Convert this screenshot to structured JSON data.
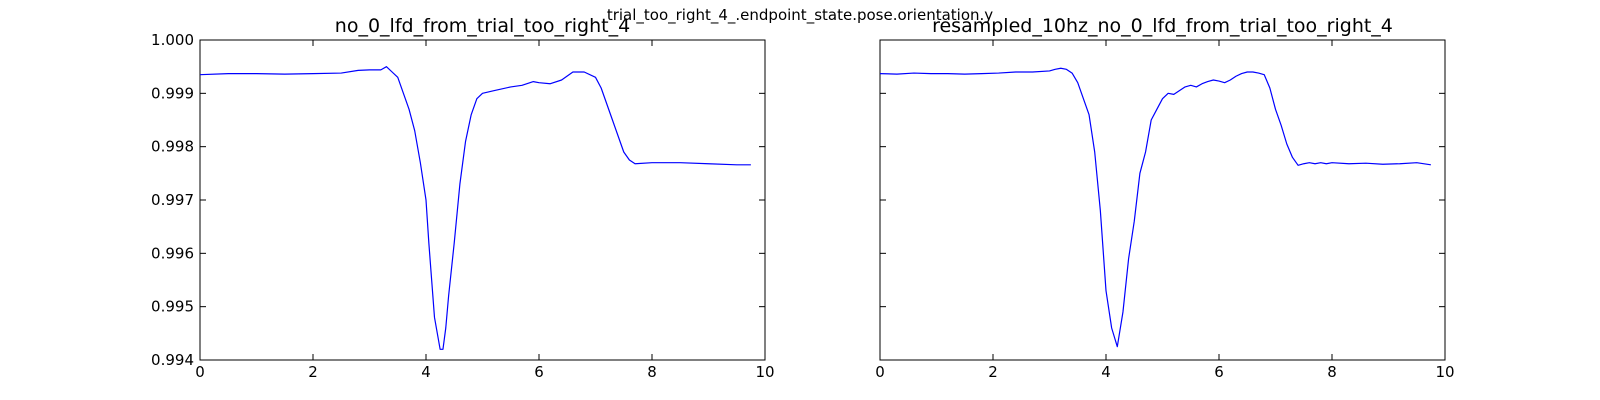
{
  "figure": {
    "suptitle": "trial_too_right_4_.endpoint_state.pose.orientation.y"
  },
  "chart_data": [
    {
      "type": "line",
      "title": "no_0_lfd_from_trial_too_right_4",
      "xlim": [
        0,
        10
      ],
      "ylim": [
        0.994,
        1.0
      ],
      "xticks": [
        0,
        2,
        4,
        6,
        8,
        10
      ],
      "yticks": [
        0.994,
        0.995,
        0.996,
        0.997,
        0.998,
        0.999,
        1.0
      ],
      "xtick_labels": [
        "0",
        "2",
        "4",
        "6",
        "8",
        "10"
      ],
      "ytick_labels": [
        "0.994",
        "0.995",
        "0.996",
        "0.997",
        "0.998",
        "0.999",
        "1.000"
      ],
      "show_y_labels": true,
      "color": "#0000ff",
      "series": [
        {
          "x": [
            0,
            0.5,
            1.0,
            1.5,
            2.0,
            2.5,
            2.8,
            3.0,
            3.2,
            3.3,
            3.4,
            3.5,
            3.6,
            3.7,
            3.8,
            3.9,
            4.0,
            4.05,
            4.1,
            4.15,
            4.2,
            4.25,
            4.3,
            4.35,
            4.4,
            4.5,
            4.6,
            4.7,
            4.8,
            4.9,
            5.0,
            5.2,
            5.5,
            5.7,
            5.9,
            6.0,
            6.2,
            6.4,
            6.6,
            6.8,
            7.0,
            7.1,
            7.2,
            7.3,
            7.4,
            7.5,
            7.6,
            7.7,
            8.0,
            8.5,
            9.0,
            9.5,
            9.75
          ],
          "y": [
            0.99935,
            0.99937,
            0.99937,
            0.99936,
            0.99937,
            0.99938,
            0.99943,
            0.99944,
            0.99944,
            0.9995,
            0.9994,
            0.9993,
            0.999,
            0.9987,
            0.9983,
            0.9977,
            0.997,
            0.9962,
            0.9955,
            0.9948,
            0.9945,
            0.9942,
            0.9942,
            0.9946,
            0.9952,
            0.9962,
            0.9973,
            0.9981,
            0.9986,
            0.9989,
            0.999,
            0.99905,
            0.99912,
            0.99915,
            0.99922,
            0.9992,
            0.99918,
            0.99925,
            0.9994,
            0.9994,
            0.9993,
            0.9991,
            0.9988,
            0.9985,
            0.9982,
            0.9979,
            0.99775,
            0.99768,
            0.9977,
            0.9977,
            0.99768,
            0.99766,
            0.99766
          ]
        }
      ]
    },
    {
      "type": "line",
      "title": "resampled_10hz_no_0_lfd_from_trial_too_right_4",
      "xlim": [
        0,
        10
      ],
      "ylim": [
        0.994,
        1.0
      ],
      "xticks": [
        0,
        2,
        4,
        6,
        8,
        10
      ],
      "yticks": [
        0.994,
        0.995,
        0.996,
        0.997,
        0.998,
        0.999,
        1.0
      ],
      "xtick_labels": [
        "0",
        "2",
        "4",
        "6",
        "8",
        "10"
      ],
      "ytick_labels": [],
      "show_y_labels": false,
      "color": "#0000ff",
      "series": [
        {
          "x": [
            0,
            0.3,
            0.6,
            0.9,
            1.2,
            1.5,
            1.8,
            2.1,
            2.4,
            2.7,
            3.0,
            3.1,
            3.2,
            3.3,
            3.4,
            3.5,
            3.6,
            3.7,
            3.8,
            3.9,
            4.0,
            4.1,
            4.2,
            4.3,
            4.4,
            4.5,
            4.6,
            4.7,
            4.8,
            4.9,
            5.0,
            5.1,
            5.2,
            5.3,
            5.4,
            5.5,
            5.6,
            5.7,
            5.8,
            5.9,
            6.0,
            6.1,
            6.2,
            6.3,
            6.4,
            6.5,
            6.6,
            6.7,
            6.8,
            6.9,
            7.0,
            7.1,
            7.2,
            7.3,
            7.4,
            7.5,
            7.6,
            7.7,
            7.8,
            7.9,
            8.0,
            8.3,
            8.6,
            8.9,
            9.2,
            9.5,
            9.75
          ],
          "y": [
            0.99937,
            0.99936,
            0.99938,
            0.99937,
            0.99937,
            0.99936,
            0.99937,
            0.99938,
            0.9994,
            0.9994,
            0.99942,
            0.99945,
            0.99947,
            0.99945,
            0.99938,
            0.9992,
            0.9989,
            0.9986,
            0.9979,
            0.9968,
            0.9953,
            0.9946,
            0.99425,
            0.9949,
            0.9959,
            0.9966,
            0.9975,
            0.9979,
            0.9985,
            0.9987,
            0.9989,
            0.999,
            0.99898,
            0.99905,
            0.99912,
            0.99915,
            0.99912,
            0.99918,
            0.99922,
            0.99925,
            0.99923,
            0.9992,
            0.99925,
            0.99932,
            0.99937,
            0.9994,
            0.9994,
            0.99938,
            0.99935,
            0.9991,
            0.9987,
            0.9984,
            0.99805,
            0.9978,
            0.99765,
            0.99768,
            0.9977,
            0.99768,
            0.9977,
            0.99768,
            0.9977,
            0.99768,
            0.99769,
            0.99767,
            0.99768,
            0.9977,
            0.99766
          ]
        }
      ]
    }
  ]
}
